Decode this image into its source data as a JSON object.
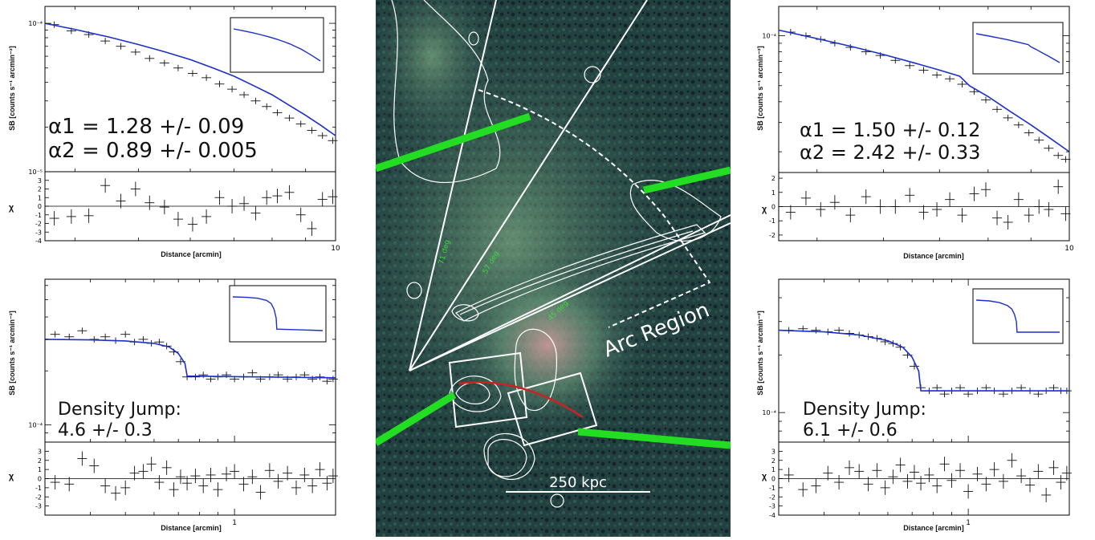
{
  "chart_data": [
    {
      "id": "top-left",
      "type": "line",
      "x_scale": "log",
      "y_scale": "log",
      "xlabel": "Distance [arcmin]",
      "ylabel": "SB [counts s⁻¹ arcmin⁻²]",
      "resid_label": "χ",
      "x_tick_labels": [
        {
          "x": 10,
          "label": "10"
        }
      ],
      "y_tick_labels": [
        {
          "y": 0.0001,
          "label": "10⁻⁴"
        },
        {
          "y": 1e-05,
          "label": "10⁻⁵"
        }
      ],
      "resid_ticks": [
        -4,
        -3,
        -2,
        -1,
        0,
        1,
        2,
        3
      ],
      "xlim": [
        3.6,
        10
      ],
      "ylim": [
        1e-05,
        0.00013
      ],
      "resid_lim": [
        -4,
        4
      ],
      "annotations": [
        "α1 = 1.28 +/- 0.09",
        "α2 = 0.89 +/- 0.005"
      ],
      "data": {
        "x": [
          3.72,
          3.95,
          4.2,
          4.45,
          4.7,
          4.95,
          5.2,
          5.48,
          5.75,
          6.05,
          6.35,
          6.65,
          6.95,
          7.25,
          7.55,
          7.85,
          8.15,
          8.5,
          8.85,
          9.2,
          9.55,
          9.9
        ],
        "y": [
          9.8e-05,
          8.9e-05,
          8.4e-05,
          7.6e-05,
          7e-05,
          6.4e-05,
          5.8e-05,
          5.4e-05,
          5e-05,
          4.6e-05,
          4.3e-05,
          3.9e-05,
          3.6e-05,
          3.3e-05,
          3e-05,
          2.75e-05,
          2.5e-05,
          2.3e-05,
          2.1e-05,
          1.9e-05,
          1.75e-05,
          1.62e-05
        ]
      },
      "model": {
        "x": [
          3.6,
          4.0,
          4.5,
          5.0,
          5.5,
          6.0,
          6.5,
          7.0,
          7.5,
          8.0,
          8.5,
          9.0,
          9.5,
          10.0
        ],
        "y": [
          0.0001,
          9.1e-05,
          8.1e-05,
          7.2e-05,
          6.4e-05,
          5.7e-05,
          5e-05,
          4.4e-05,
          3.8e-05,
          3.3e-05,
          2.8e-05,
          2.4e-05,
          2.05e-05,
          1.75e-05
        ]
      },
      "residuals": [
        -1.4,
        -1.2,
        -1.1,
        2.4,
        0.6,
        2.0,
        0.4,
        -0.1,
        -1.5,
        -2.1,
        -1.2,
        1.0,
        0.0,
        0.3,
        -0.8,
        1.0,
        1.2,
        1.6,
        -1.0,
        -2.6,
        0.8,
        1.1
      ]
    },
    {
      "id": "top-right",
      "type": "line",
      "x_scale": "log",
      "y_scale": "log",
      "xlabel": "Distance [arcmin]",
      "ylabel": "SB [counts s⁻¹ arcmin⁻²]",
      "resid_label": "χ",
      "x_tick_labels": [
        {
          "x": 10,
          "label": "10"
        }
      ],
      "y_tick_labels": [
        {
          "y": 0.0001,
          "label": "10⁻⁴"
        }
      ],
      "resid_ticks": [
        -2,
        -1,
        0,
        1,
        2
      ],
      "xlim": [
        4.5,
        10
      ],
      "ylim": [
        1.5e-05,
        0.00015
      ],
      "resid_lim": [
        -2.4,
        2.4
      ],
      "annotations": [
        "α1 = 1.50 +/- 0.12",
        "α2 = 2.42 +/- 0.33"
      ],
      "data": {
        "x": [
          4.65,
          4.85,
          5.05,
          5.25,
          5.48,
          5.72,
          5.95,
          6.2,
          6.45,
          6.7,
          6.95,
          7.2,
          7.45,
          7.7,
          7.95,
          8.2,
          8.45,
          8.7,
          8.95,
          9.2,
          9.45,
          9.7,
          9.9
        ],
        "y": [
          0.000105,
          0.0001,
          9.5e-05,
          9e-05,
          8.5e-05,
          8e-05,
          7.6e-05,
          7.1e-05,
          6.6e-05,
          6.2e-05,
          5.8e-05,
          5.5e-05,
          5.1e-05,
          4.6e-05,
          4.1e-05,
          3.6e-05,
          3.2e-05,
          2.9e-05,
          2.6e-05,
          2.35e-05,
          2.1e-05,
          1.9e-05,
          1.8e-05
        ]
      },
      "model": {
        "x": [
          4.5,
          5.0,
          5.5,
          6.0,
          6.5,
          7.0,
          7.4,
          7.6,
          8.0,
          8.5,
          9.0,
          9.5,
          10.0
        ],
        "y": [
          0.000108,
          9.6e-05,
          8.6e-05,
          7.7e-05,
          6.9e-05,
          6.2e-05,
          5.7e-05,
          5e-05,
          4.3e-05,
          3.5e-05,
          2.9e-05,
          2.4e-05,
          2e-05
        ]
      },
      "residuals": [
        -0.4,
        0.6,
        -0.2,
        0.3,
        -0.6,
        0.7,
        0.0,
        0.0,
        0.8,
        -0.4,
        -0.2,
        0.5,
        -0.6,
        0.9,
        1.2,
        -0.8,
        -1.1,
        0.5,
        -0.6,
        0.0,
        -0.2,
        1.4,
        -0.5
      ]
    },
    {
      "id": "bottom-left",
      "type": "line",
      "x_scale": "log",
      "y_scale": "log",
      "xlabel": "Distance [arcmin]",
      "ylabel": "SB [counts s⁻¹ arcmin⁻²]",
      "resid_label": "χ",
      "x_tick_labels": [
        {
          "x": 1,
          "label": "1"
        }
      ],
      "y_tick_labels": [
        {
          "y": 0.0001,
          "label": "10⁻⁴"
        }
      ],
      "resid_ticks": [
        -3,
        -2,
        -1,
        0,
        1,
        2,
        3
      ],
      "xlim": [
        0.3,
        1.9
      ],
      "ylim": [
        8e-05,
        0.00065
      ],
      "resid_lim": [
        -4,
        4
      ],
      "annotations": [
        "Density Jump:",
        "4.6 +/- 0.3"
      ],
      "data": {
        "x": [
          0.32,
          0.35,
          0.38,
          0.41,
          0.44,
          0.47,
          0.5,
          0.53,
          0.56,
          0.59,
          0.62,
          0.65,
          0.68,
          0.71,
          0.74,
          0.78,
          0.82,
          0.86,
          0.9,
          0.95,
          1.0,
          1.06,
          1.12,
          1.18,
          1.25,
          1.32,
          1.4,
          1.48,
          1.56,
          1.64,
          1.72,
          1.8,
          1.87
        ],
        "y": [
          0.00032,
          0.00031,
          0.000335,
          0.0003,
          0.00031,
          0.000295,
          0.00032,
          0.00029,
          0.0003,
          0.000285,
          0.00029,
          0.000275,
          0.000255,
          0.000225,
          0.000185,
          0.000185,
          0.00019,
          0.00018,
          0.000185,
          0.00019,
          0.00018,
          0.000185,
          0.000195,
          0.00018,
          0.000185,
          0.00019,
          0.00018,
          0.000185,
          0.00019,
          0.00018,
          0.000185,
          0.000175,
          0.00018
        ]
      },
      "model": {
        "x": [
          0.3,
          0.4,
          0.5,
          0.6,
          0.66,
          0.7,
          0.73,
          0.74,
          0.9,
          1.2,
          1.5,
          1.9
        ],
        "y": [
          0.0003,
          0.000298,
          0.000294,
          0.000285,
          0.000272,
          0.00025,
          0.00022,
          0.000187,
          0.000186,
          0.000185,
          0.000184,
          0.000183
        ]
      },
      "residuals": [
        -0.4,
        -0.6,
        2.2,
        1.4,
        -0.8,
        -1.6,
        -1.0,
        0.6,
        0.8,
        1.6,
        -0.4,
        1.2,
        -1.2,
        0.2,
        -0.5,
        0.3,
        -0.8,
        0.4,
        -1.2,
        0.5,
        0.8,
        -0.6,
        0.2,
        -1.5,
        0.9,
        -0.3,
        0.6,
        -1.0,
        0.4,
        -0.8,
        1.0,
        -0.5,
        0.3
      ]
    },
    {
      "id": "bottom-right",
      "type": "line",
      "x_scale": "log",
      "y_scale": "log",
      "xlabel": "Distance [arcmin]",
      "ylabel": "SB [counts s⁻¹ arcmin⁻²]",
      "resid_label": "χ",
      "x_tick_labels": [
        {
          "x": 1,
          "label": "1"
        }
      ],
      "y_tick_labels": [
        {
          "y": 0.0001,
          "label": "10⁻⁴"
        }
      ],
      "resid_ticks": [
        -4,
        -3,
        -2,
        -1,
        0,
        1,
        2,
        3
      ],
      "xlim": [
        0.3,
        1.9
      ],
      "ylim": [
        7e-05,
        0.0005
      ],
      "resid_lim": [
        -4,
        4
      ],
      "annotations": [
        "Density Jump:",
        "6.1 +/- 0.6"
      ],
      "data": {
        "x": [
          0.32,
          0.35,
          0.38,
          0.41,
          0.44,
          0.47,
          0.5,
          0.53,
          0.56,
          0.59,
          0.62,
          0.65,
          0.68,
          0.71,
          0.74,
          0.78,
          0.82,
          0.86,
          0.9,
          0.95,
          1.0,
          1.06,
          1.12,
          1.18,
          1.25,
          1.32,
          1.4,
          1.48,
          1.56,
          1.64,
          1.72,
          1.8,
          1.87
        ],
        "y": [
          0.00027,
          0.000275,
          0.00027,
          0.000265,
          0.00027,
          0.00026,
          0.000255,
          0.00025,
          0.000245,
          0.000235,
          0.00023,
          0.00022,
          0.0002,
          0.000175,
          0.000135,
          0.00013,
          0.000135,
          0.000125,
          0.00013,
          0.000135,
          0.000125,
          0.00013,
          0.000135,
          0.00013,
          0.000125,
          0.00013,
          0.000135,
          0.00013,
          0.000125,
          0.00013,
          0.000135,
          0.00013,
          0.00013
        ]
      },
      "model": {
        "x": [
          0.3,
          0.4,
          0.5,
          0.6,
          0.66,
          0.7,
          0.73,
          0.74,
          0.9,
          1.2,
          1.5,
          1.9
        ],
        "y": [
          0.00027,
          0.000265,
          0.000255,
          0.000238,
          0.00022,
          0.000195,
          0.000165,
          0.00013,
          0.00013,
          0.00013,
          0.00013,
          0.00013
        ]
      },
      "residuals": [
        0.4,
        -1.2,
        -0.8,
        0.6,
        -0.4,
        1.2,
        0.8,
        -0.6,
        0.9,
        -1.0,
        0.2,
        1.5,
        -0.3,
        0.7,
        -0.5,
        0.4,
        -0.8,
        1.6,
        -0.2,
        0.9,
        -1.4,
        0.5,
        -0.6,
        1.0,
        -0.3,
        2.0,
        0.3,
        -0.7,
        0.8,
        -1.8,
        1.2,
        -0.4,
        0.6
      ]
    }
  ],
  "xray_map": {
    "scale_bar_label": "250 kpc",
    "region_label": "Arc Region",
    "angle_labels": [
      "71 deg",
      "57 deg",
      "45 deg"
    ],
    "colors": {
      "background": "#1f3a3a",
      "contour": "#ffffff",
      "arrow": "#22dd22",
      "edge": "#cc2222",
      "emission": "#d8a0a0"
    }
  }
}
